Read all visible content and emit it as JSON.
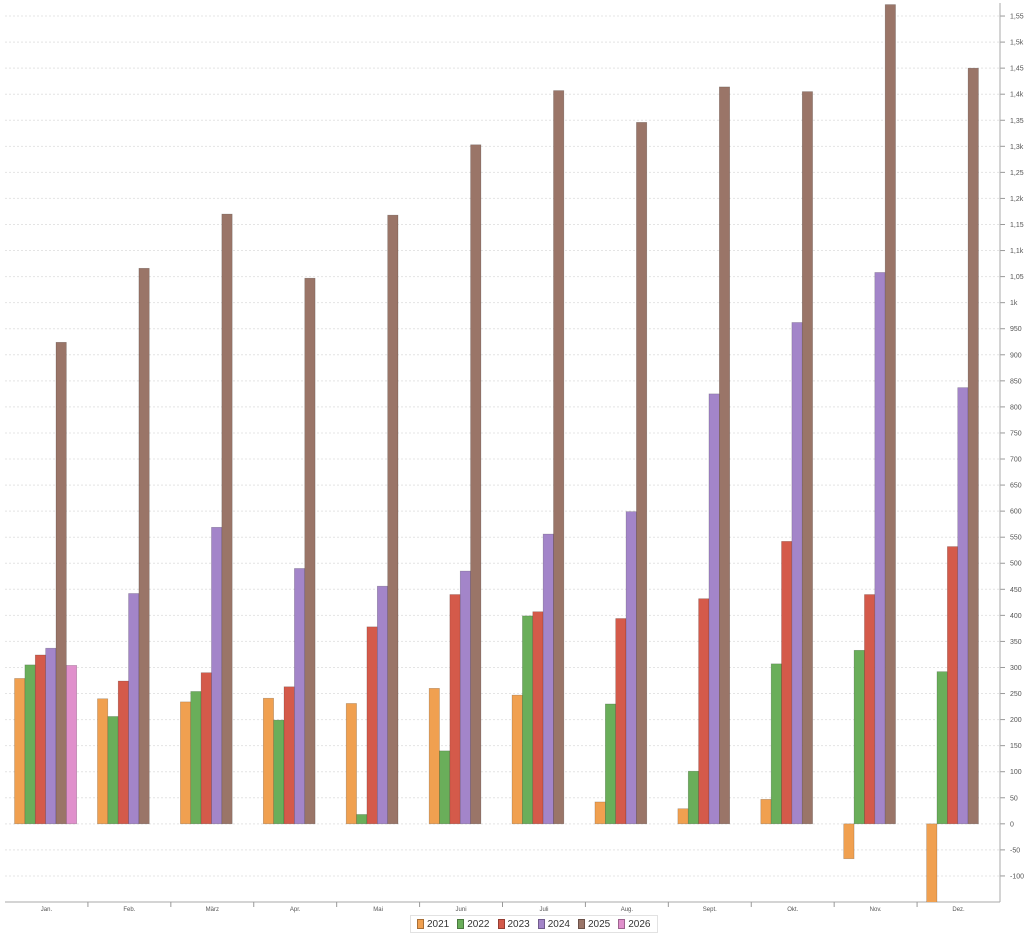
{
  "chart_data": {
    "type": "bar",
    "title": "",
    "xlabel": "",
    "ylabel": "",
    "categories": [
      "Jan.",
      "Feb.",
      "März",
      "Apr.",
      "Mai",
      "Juni",
      "Juli",
      "Aug.",
      "Sept.",
      "Okt.",
      "Nov.",
      "Dez."
    ],
    "ylim": [
      -150,
      1575
    ],
    "yticks": [
      -100,
      -50,
      0,
      50,
      100,
      150,
      200,
      250,
      300,
      350,
      400,
      450,
      500,
      550,
      600,
      650,
      700,
      750,
      800,
      850,
      900,
      950,
      1000,
      1050,
      1100,
      1150,
      1200,
      1250,
      1300,
      1350,
      1400,
      1450,
      1500,
      1550
    ],
    "ytick_labels": [
      "-100",
      "-50",
      "0",
      "50",
      "100",
      "150",
      "200",
      "250",
      "300",
      "350",
      "400",
      "450",
      "500",
      "550",
      "600",
      "650",
      "700",
      "750",
      "800",
      "850",
      "900",
      "950",
      "1k",
      "1,05k",
      "1,1k",
      "1,15k",
      "1,2k",
      "1,25k",
      "1,3k",
      "1,35k",
      "1,4k",
      "1,45k",
      "1,5k",
      "1,55k"
    ],
    "grid": true,
    "yaxis_position": "right",
    "legend_position": "bottom-center",
    "series": [
      {
        "name": "2021",
        "color": "#f0a050",
        "values": [
          279,
          240,
          234,
          241,
          231,
          260,
          247,
          42,
          29,
          47,
          -67,
          -151
        ]
      },
      {
        "name": "2022",
        "color": "#6aae5a",
        "values": [
          305,
          206,
          254,
          199,
          18,
          140,
          399,
          230,
          101,
          307,
          333,
          292
        ]
      },
      {
        "name": "2023",
        "color": "#d45a4a",
        "values": [
          324,
          274,
          290,
          263,
          378,
          440,
          407,
          394,
          432,
          542,
          440,
          532
        ]
      },
      {
        "name": "2024",
        "color": "#a385c9",
        "values": [
          337,
          442,
          569,
          490,
          456,
          485,
          556,
          599,
          825,
          962,
          1058,
          837
        ]
      },
      {
        "name": "2025",
        "color": "#9a7568",
        "values": [
          924,
          1066,
          1170,
          1047,
          1168,
          1303,
          1407,
          1346,
          1414,
          1405,
          1572,
          1450
        ]
      },
      {
        "name": "2026",
        "color": "#e090cc",
        "values": [
          304,
          null,
          null,
          null,
          null,
          null,
          null,
          null,
          null,
          null,
          null,
          null
        ]
      }
    ]
  }
}
